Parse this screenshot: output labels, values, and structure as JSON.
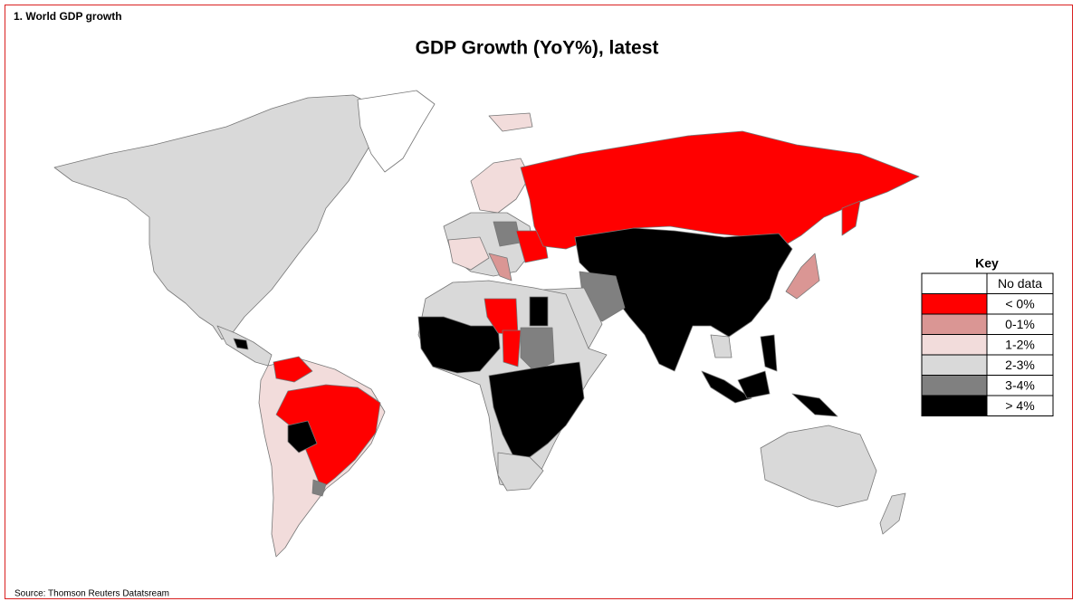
{
  "header": {
    "label": "1. World GDP growth"
  },
  "title": "GDP Growth (YoY%), latest",
  "legend": {
    "title": "Key",
    "entries": [
      {
        "label": "No data",
        "color": "#ffffff"
      },
      {
        "label": "< 0%",
        "color": "#ff0000"
      },
      {
        "label": "0-1%",
        "color": "#da9694"
      },
      {
        "label": "1-2%",
        "color": "#f2dcdb"
      },
      {
        "label": "2-3%",
        "color": "#d9d9d9"
      },
      {
        "label": "3-4%",
        "color": "#808080"
      },
      {
        "label": "> 4%",
        "color": "#000000"
      }
    ]
  },
  "source": "Source: Thomson Reuters Datatsream"
}
